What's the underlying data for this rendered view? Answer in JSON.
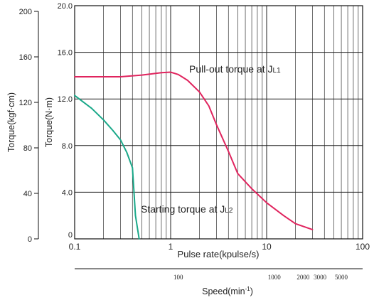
{
  "chart_data": {
    "type": "line",
    "x_scale": "log",
    "xlim": [
      0.1,
      100
    ],
    "ylim": [
      0,
      20
    ],
    "y_ticks": [
      "0",
      "4.0",
      "8.0",
      "12.0",
      "16.0",
      "20.0"
    ],
    "y_tick_values": [
      0,
      4,
      8,
      12,
      16,
      20
    ],
    "y2_ticks": [
      "0",
      "40",
      "80",
      "120",
      "160",
      "200"
    ],
    "y2_tick_values": [
      0,
      40,
      80,
      120,
      160,
      200
    ],
    "x_ticks": [
      "0.1",
      "1",
      "10",
      "100"
    ],
    "x_tick_values": [
      0.1,
      1,
      10,
      100
    ],
    "xlabel": "Pulse rate(kpulse/s)",
    "ylabel": "Torque(N·m)",
    "y2label": "Torque(kgf·cm)",
    "speed_axis": {
      "label": "Speed(min",
      "label_sup": "-1",
      "label_end": ")",
      "ticks": [
        {
          "label": "100",
          "pulse": 1.2
        },
        {
          "label": "1000",
          "pulse": 12
        },
        {
          "label": "2000",
          "pulse": 24
        },
        {
          "label": "3000",
          "pulse": 36
        },
        {
          "label": "5000",
          "pulse": 60
        }
      ]
    },
    "grid": true,
    "series": [
      {
        "name": "Pull-out torque at JL1",
        "color": "#e0245e",
        "x": [
          0.1,
          0.2,
          0.3,
          0.5,
          0.8,
          1.0,
          1.2,
          1.5,
          2.0,
          2.5,
          3.0,
          4.0,
          5.0,
          7.0,
          10,
          15,
          20,
          30
        ],
        "y": [
          13.9,
          13.9,
          13.9,
          14.05,
          14.25,
          14.3,
          14.1,
          13.6,
          12.6,
          11.4,
          9.8,
          7.5,
          5.6,
          4.3,
          3.1,
          2.0,
          1.3,
          0.8
        ]
      },
      {
        "name": "Starting torque at JL2",
        "color": "#1aa889",
        "x": [
          0.1,
          0.15,
          0.2,
          0.25,
          0.3,
          0.35,
          0.4,
          0.43,
          0.47
        ],
        "y": [
          12.3,
          11.2,
          10.2,
          9.3,
          8.5,
          7.4,
          6.1,
          2.0,
          0
        ]
      }
    ],
    "annotations": {
      "pullout": {
        "text": "Pull-out torque at J",
        "sub": "L1"
      },
      "starting": {
        "text": "Starting torque at J",
        "sub": "L2"
      }
    }
  }
}
